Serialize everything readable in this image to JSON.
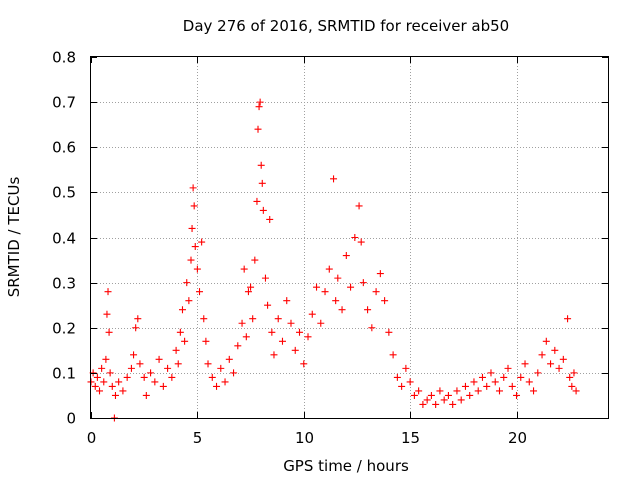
{
  "chart_data": {
    "type": "scatter",
    "title": "Day 276 of 2016, SRMTID for receiver ab50",
    "xlabel": "GPS time / hours",
    "ylabel": "SRMTID / TECUs",
    "xlim": [
      0,
      24.3
    ],
    "ylim": [
      0,
      0.8
    ],
    "xticks": [
      0,
      5,
      10,
      15,
      20
    ],
    "xtick_labels": [
      "0",
      "5",
      "10",
      "15",
      "20"
    ],
    "yticks": [
      0,
      0.1,
      0.2,
      0.3,
      0.4,
      0.5,
      0.6,
      0.7,
      0.8
    ],
    "ytick_labels": [
      "0",
      "0.1",
      "0.2",
      "0.3",
      "0.4",
      "0.5",
      "0.6",
      "0.7",
      "0.8"
    ],
    "grid": true,
    "marker": "+",
    "color": "#ff0000",
    "series": [
      {
        "name": "SRMTID",
        "points": [
          [
            0.0,
            0.08
          ],
          [
            0.1,
            0.1
          ],
          [
            0.2,
            0.07
          ],
          [
            0.3,
            0.09
          ],
          [
            0.4,
            0.06
          ],
          [
            0.5,
            0.11
          ],
          [
            0.6,
            0.08
          ],
          [
            0.7,
            0.13
          ],
          [
            0.75,
            0.23
          ],
          [
            0.8,
            0.28
          ],
          [
            0.85,
            0.19
          ],
          [
            0.9,
            0.1
          ],
          [
            1.0,
            0.07
          ],
          [
            1.1,
            0.0
          ],
          [
            1.15,
            0.05
          ],
          [
            1.3,
            0.08
          ],
          [
            1.5,
            0.06
          ],
          [
            1.7,
            0.09
          ],
          [
            1.9,
            0.11
          ],
          [
            2.0,
            0.14
          ],
          [
            2.1,
            0.2
          ],
          [
            2.2,
            0.22
          ],
          [
            2.3,
            0.12
          ],
          [
            2.5,
            0.09
          ],
          [
            2.6,
            0.05
          ],
          [
            2.8,
            0.1
          ],
          [
            3.0,
            0.08
          ],
          [
            3.2,
            0.13
          ],
          [
            3.4,
            0.07
          ],
          [
            3.6,
            0.11
          ],
          [
            3.8,
            0.09
          ],
          [
            4.0,
            0.15
          ],
          [
            4.1,
            0.12
          ],
          [
            4.2,
            0.19
          ],
          [
            4.3,
            0.24
          ],
          [
            4.4,
            0.17
          ],
          [
            4.5,
            0.3
          ],
          [
            4.6,
            0.26
          ],
          [
            4.7,
            0.35
          ],
          [
            4.75,
            0.42
          ],
          [
            4.8,
            0.51
          ],
          [
            4.85,
            0.47
          ],
          [
            4.9,
            0.38
          ],
          [
            5.0,
            0.33
          ],
          [
            5.1,
            0.28
          ],
          [
            5.2,
            0.39
          ],
          [
            5.3,
            0.22
          ],
          [
            5.4,
            0.17
          ],
          [
            5.5,
            0.12
          ],
          [
            5.7,
            0.09
          ],
          [
            5.9,
            0.07
          ],
          [
            6.1,
            0.11
          ],
          [
            6.3,
            0.08
          ],
          [
            6.5,
            0.13
          ],
          [
            6.7,
            0.1
          ],
          [
            6.9,
            0.16
          ],
          [
            7.1,
            0.21
          ],
          [
            7.2,
            0.33
          ],
          [
            7.3,
            0.18
          ],
          [
            7.4,
            0.28
          ],
          [
            7.5,
            0.29
          ],
          [
            7.6,
            0.22
          ],
          [
            7.7,
            0.35
          ],
          [
            7.8,
            0.48
          ],
          [
            7.85,
            0.64
          ],
          [
            7.9,
            0.69
          ],
          [
            7.95,
            0.7
          ],
          [
            8.0,
            0.56
          ],
          [
            8.05,
            0.52
          ],
          [
            8.1,
            0.46
          ],
          [
            8.2,
            0.31
          ],
          [
            8.3,
            0.25
          ],
          [
            8.4,
            0.44
          ],
          [
            8.5,
            0.19
          ],
          [
            8.6,
            0.14
          ],
          [
            8.8,
            0.22
          ],
          [
            9.0,
            0.17
          ],
          [
            9.2,
            0.26
          ],
          [
            9.4,
            0.21
          ],
          [
            9.6,
            0.15
          ],
          [
            9.8,
            0.19
          ],
          [
            10.0,
            0.12
          ],
          [
            10.2,
            0.18
          ],
          [
            10.4,
            0.23
          ],
          [
            10.6,
            0.29
          ],
          [
            10.8,
            0.21
          ],
          [
            11.0,
            0.28
          ],
          [
            11.2,
            0.33
          ],
          [
            11.4,
            0.53
          ],
          [
            11.5,
            0.26
          ],
          [
            11.6,
            0.31
          ],
          [
            11.8,
            0.24
          ],
          [
            12.0,
            0.36
          ],
          [
            12.2,
            0.29
          ],
          [
            12.4,
            0.4
          ],
          [
            12.6,
            0.47
          ],
          [
            12.7,
            0.39
          ],
          [
            12.8,
            0.3
          ],
          [
            13.0,
            0.24
          ],
          [
            13.2,
            0.2
          ],
          [
            13.4,
            0.28
          ],
          [
            13.6,
            0.32
          ],
          [
            13.8,
            0.26
          ],
          [
            14.0,
            0.19
          ],
          [
            14.2,
            0.14
          ],
          [
            14.4,
            0.09
          ],
          [
            14.6,
            0.07
          ],
          [
            14.8,
            0.11
          ],
          [
            15.0,
            0.08
          ],
          [
            15.2,
            0.05
          ],
          [
            15.4,
            0.06
          ],
          [
            15.6,
            0.03
          ],
          [
            15.8,
            0.04
          ],
          [
            16.0,
            0.05
          ],
          [
            16.2,
            0.03
          ],
          [
            16.4,
            0.06
          ],
          [
            16.6,
            0.04
          ],
          [
            16.8,
            0.05
          ],
          [
            17.0,
            0.03
          ],
          [
            17.2,
            0.06
          ],
          [
            17.4,
            0.04
          ],
          [
            17.6,
            0.07
          ],
          [
            17.8,
            0.05
          ],
          [
            18.0,
            0.08
          ],
          [
            18.2,
            0.06
          ],
          [
            18.4,
            0.09
          ],
          [
            18.6,
            0.07
          ],
          [
            18.8,
            0.1
          ],
          [
            19.0,
            0.08
          ],
          [
            19.2,
            0.06
          ],
          [
            19.4,
            0.09
          ],
          [
            19.6,
            0.11
          ],
          [
            19.8,
            0.07
          ],
          [
            20.0,
            0.05
          ],
          [
            20.2,
            0.09
          ],
          [
            20.4,
            0.12
          ],
          [
            20.6,
            0.08
          ],
          [
            20.8,
            0.06
          ],
          [
            21.0,
            0.1
          ],
          [
            21.2,
            0.14
          ],
          [
            21.4,
            0.17
          ],
          [
            21.6,
            0.12
          ],
          [
            21.8,
            0.15
          ],
          [
            22.0,
            0.11
          ],
          [
            22.2,
            0.13
          ],
          [
            22.4,
            0.22
          ],
          [
            22.5,
            0.09
          ],
          [
            22.6,
            0.07
          ],
          [
            22.7,
            0.1
          ],
          [
            22.8,
            0.06
          ]
        ]
      }
    ]
  }
}
